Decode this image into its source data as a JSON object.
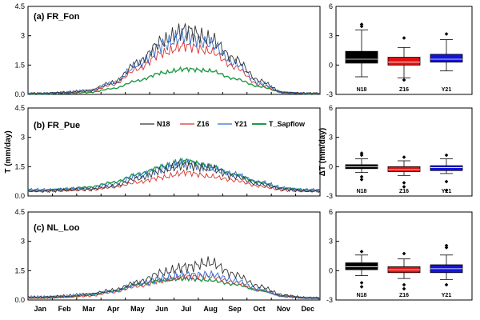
{
  "figure": {
    "ylabel_left": "T (mm/day)",
    "ylabel_right": "ΔT (mm/day)",
    "months": [
      "Jan",
      "Feb",
      "Mar",
      "Apr",
      "May",
      "Jun",
      "Jul",
      "Aug",
      "Sep",
      "Oct",
      "Nov",
      "Dec"
    ],
    "legend": [
      "N18",
      "Z16",
      "Y21",
      "T_Sapflow"
    ]
  },
  "colors": {
    "N18": "#333333",
    "Z16": "#d9312b",
    "Y21": "#2f6fd6",
    "T_Sapflow": "#1f9a45",
    "box_N18": "#000000",
    "box_Z16": "#e01010",
    "box_Y21": "#1414d8"
  },
  "chart_data": [
    {
      "type": "line",
      "title": "(a) FR_Fon",
      "xlabel": "",
      "ylabel": "",
      "ylim": [
        0,
        4.5
      ],
      "yticks": [
        "0.0",
        "1.5",
        "3",
        "4.5"
      ],
      "x": [
        "Jan",
        "Feb",
        "Mar",
        "Apr",
        "May",
        "Jun",
        "Jul",
        "Aug",
        "Sep",
        "Oct",
        "Nov",
        "Dec"
      ],
      "series": [
        {
          "name": "N18",
          "values": [
            0.05,
            0.1,
            0.2,
            0.6,
            1.6,
            2.7,
            3.3,
            2.8,
            1.8,
            0.7,
            0.1,
            0.05
          ]
        },
        {
          "name": "Z16",
          "values": [
            0.05,
            0.1,
            0.15,
            0.5,
            1.3,
            2.1,
            2.5,
            2.2,
            1.4,
            0.5,
            0.1,
            0.05
          ]
        },
        {
          "name": "Y21",
          "values": [
            0.05,
            0.1,
            0.2,
            0.6,
            1.5,
            2.5,
            3.0,
            2.6,
            1.6,
            0.6,
            0.1,
            0.05
          ]
        },
        {
          "name": "T_Sapflow",
          "values": [
            0.02,
            0.05,
            0.1,
            0.3,
            0.7,
            1.1,
            1.3,
            1.2,
            0.8,
            0.4,
            0.1,
            0.02
          ]
        }
      ]
    },
    {
      "type": "line",
      "title": "(b) FR_Pue",
      "xlabel": "",
      "ylabel": "",
      "ylim": [
        0,
        4.5
      ],
      "yticks": [
        "0.0",
        "1.5",
        "3",
        "4.5"
      ],
      "x": [
        "Jan",
        "Feb",
        "Mar",
        "Apr",
        "May",
        "Jun",
        "Jul",
        "Aug",
        "Sep",
        "Oct",
        "Nov",
        "Dec"
      ],
      "series": [
        {
          "name": "N18",
          "values": [
            0.25,
            0.3,
            0.35,
            0.5,
            0.9,
            1.3,
            1.6,
            1.4,
            1.0,
            0.6,
            0.35,
            0.25
          ]
        },
        {
          "name": "Z16",
          "values": [
            0.25,
            0.28,
            0.32,
            0.45,
            0.7,
            0.95,
            1.2,
            1.0,
            0.8,
            0.5,
            0.3,
            0.25
          ]
        },
        {
          "name": "Y21",
          "values": [
            0.3,
            0.35,
            0.4,
            0.6,
            1.0,
            1.4,
            1.7,
            1.4,
            1.1,
            0.7,
            0.4,
            0.3
          ]
        },
        {
          "name": "T_Sapflow",
          "values": [
            0.3,
            0.35,
            0.45,
            0.7,
            1.1,
            1.5,
            1.8,
            1.5,
            1.1,
            0.7,
            0.4,
            0.3
          ]
        }
      ]
    },
    {
      "type": "line",
      "title": "(c) NL_Loo",
      "xlabel": "",
      "ylabel": "",
      "ylim": [
        0,
        4.5
      ],
      "yticks": [
        "0.0",
        "1.5",
        "3",
        "4.5"
      ],
      "x": [
        "Jan",
        "Feb",
        "Mar",
        "Apr",
        "May",
        "Jun",
        "Jul",
        "Aug",
        "Sep",
        "Oct",
        "Nov",
        "Dec"
      ],
      "series": [
        {
          "name": "N18",
          "values": [
            0.15,
            0.2,
            0.3,
            0.5,
            0.9,
            1.4,
            1.7,
            1.9,
            1.3,
            0.7,
            0.25,
            0.1
          ]
        },
        {
          "name": "Z16",
          "values": [
            0.1,
            0.15,
            0.2,
            0.4,
            0.7,
            1.0,
            1.2,
            1.2,
            0.9,
            0.5,
            0.2,
            0.1
          ]
        },
        {
          "name": "Y21",
          "values": [
            0.15,
            0.2,
            0.3,
            0.45,
            0.8,
            1.1,
            1.3,
            1.3,
            1.0,
            0.55,
            0.2,
            0.1
          ]
        },
        {
          "name": "T_Sapflow",
          "values": [
            0.1,
            0.15,
            0.25,
            0.45,
            0.8,
            1.0,
            1.1,
            1.0,
            0.8,
            0.5,
            0.2,
            0.1
          ]
        }
      ]
    },
    {
      "type": "box",
      "ylim": [
        -3,
        6
      ],
      "yticks": [
        "-3",
        "0",
        "3",
        "6"
      ],
      "categories": [
        "N18",
        "Z16",
        "Y21"
      ],
      "boxes": [
        {
          "name": "N18",
          "min": -1.2,
          "q1": 0.2,
          "median": 0.6,
          "q3": 1.4,
          "max": 3.6,
          "outliers": [
            4.0,
            4.2
          ]
        },
        {
          "name": "Z16",
          "min": -1.3,
          "q1": 0.0,
          "median": 0.3,
          "q3": 0.8,
          "max": 1.8,
          "outliers": [
            2.8,
            -1.5
          ]
        },
        {
          "name": "Y21",
          "min": -0.6,
          "q1": 0.3,
          "median": 0.6,
          "q3": 1.1,
          "max": 2.6,
          "outliers": [
            3.2
          ]
        }
      ]
    },
    {
      "type": "box",
      "ylim": [
        -3,
        6
      ],
      "yticks": [
        "-3",
        "0",
        "3",
        "6"
      ],
      "categories": [
        "N18",
        "Z16",
        "Y21"
      ],
      "boxes": [
        {
          "name": "N18",
          "min": -0.6,
          "q1": -0.2,
          "median": 0.0,
          "q3": 0.2,
          "max": 0.8,
          "outliers": [
            1.2,
            1.4,
            -1.0,
            -1.3
          ]
        },
        {
          "name": "Z16",
          "min": -0.9,
          "q1": -0.5,
          "median": -0.3,
          "q3": 0.0,
          "max": 0.6,
          "outliers": [
            1.0,
            -1.6,
            -2.0
          ]
        },
        {
          "name": "Y21",
          "min": -0.7,
          "q1": -0.4,
          "median": -0.1,
          "q3": 0.1,
          "max": 0.8,
          "outliers": [
            1.2,
            -1.5,
            -2.4
          ]
        }
      ]
    },
    {
      "type": "box",
      "ylim": [
        -3,
        6
      ],
      "yticks": [
        "-3",
        "0",
        "3",
        "6"
      ],
      "categories": [
        "N18",
        "Z16",
        "Y21"
      ],
      "boxes": [
        {
          "name": "N18",
          "min": -0.5,
          "q1": 0.1,
          "median": 0.4,
          "q3": 0.8,
          "max": 1.6,
          "outliers": [
            2.0,
            -1.2,
            -1.6
          ]
        },
        {
          "name": "Z16",
          "min": -0.8,
          "q1": -0.2,
          "median": 0.1,
          "q3": 0.4,
          "max": 1.2,
          "outliers": [
            1.8,
            -1.4,
            -1.8
          ]
        },
        {
          "name": "Y21",
          "min": -0.9,
          "q1": -0.2,
          "median": 0.2,
          "q3": 0.6,
          "max": 1.6,
          "outliers": [
            2.4,
            2.6,
            -1.4
          ]
        }
      ]
    }
  ]
}
